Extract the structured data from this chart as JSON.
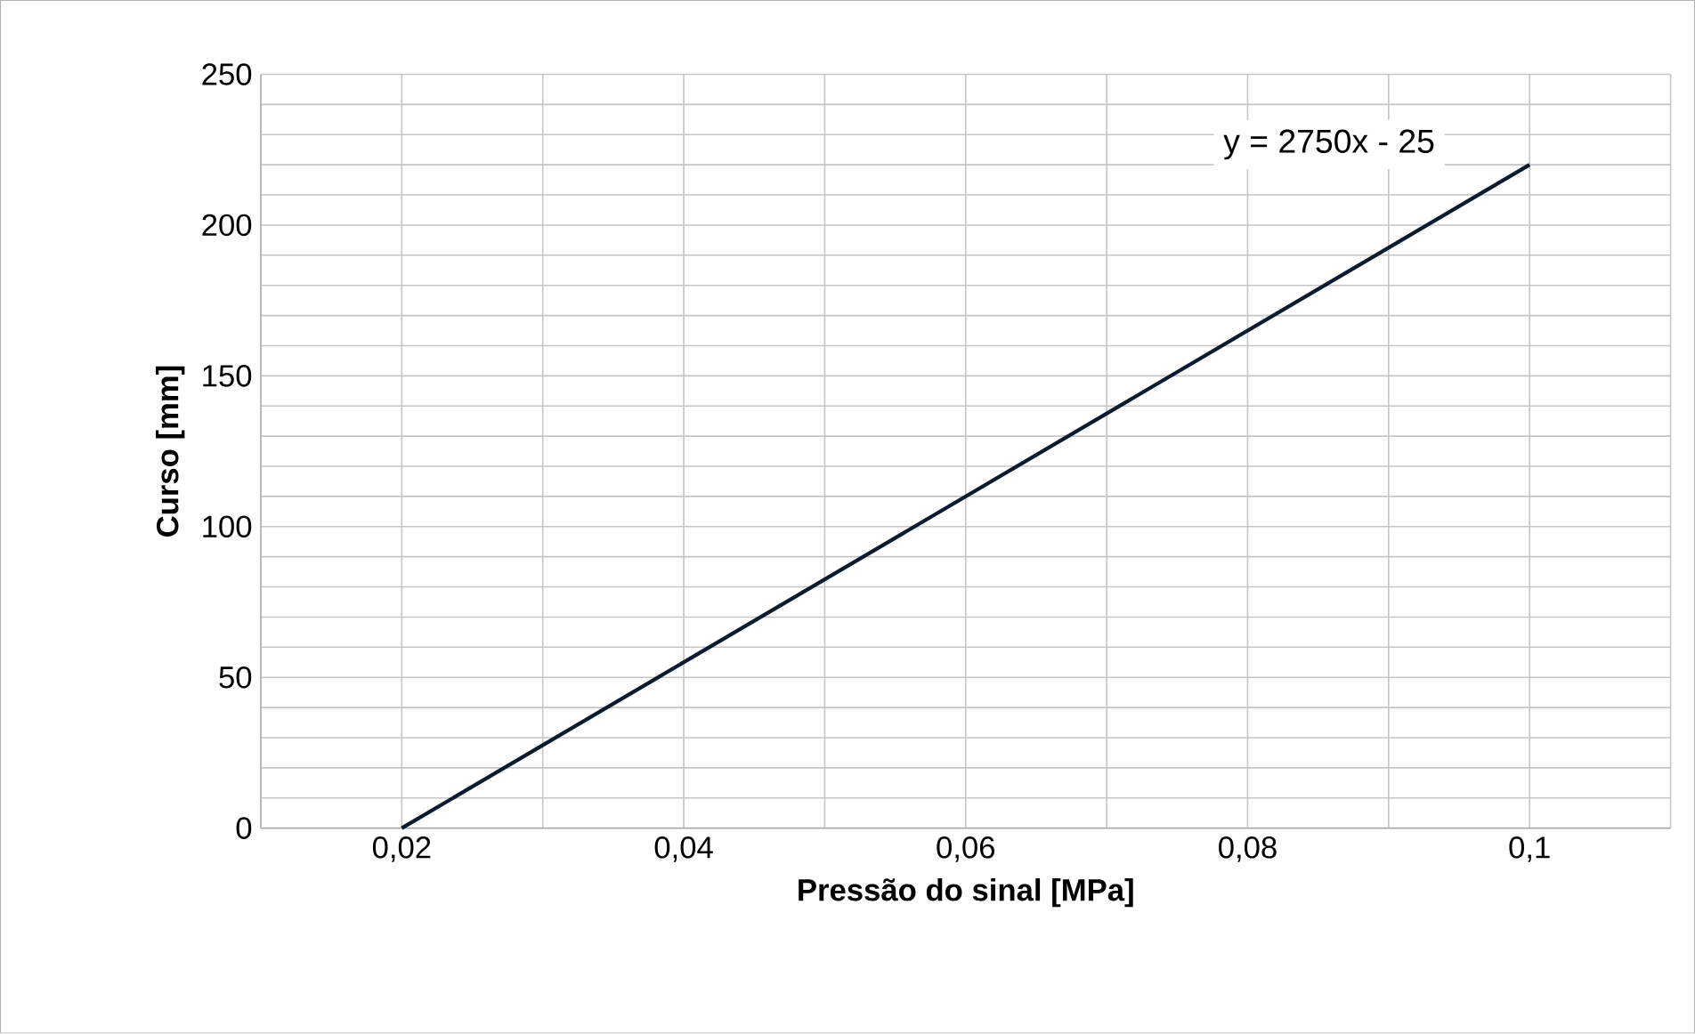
{
  "chart_data": {
    "type": "line",
    "xlabel": "Pressão do sinal [MPa]",
    "ylabel": "Curso [mm]",
    "x": [
      0.02,
      0.1
    ],
    "series": [
      {
        "color": "#0d1b2e",
        "values": [
          0,
          220
        ]
      }
    ],
    "xlim": [
      0.01,
      0.11
    ],
    "xticks": [
      {
        "value": 0.01,
        "label": null
      },
      {
        "value": 0.02,
        "label": "0,02"
      },
      {
        "value": 0.03,
        "label": null
      },
      {
        "value": 0.04,
        "label": "0,04"
      },
      {
        "value": 0.05,
        "label": null
      },
      {
        "value": 0.06,
        "label": "0,06"
      },
      {
        "value": 0.07,
        "label": null
      },
      {
        "value": 0.08,
        "label": "0,08"
      },
      {
        "value": 0.09,
        "label": null
      },
      {
        "value": 0.1,
        "label": "0,1"
      },
      {
        "value": 0.11,
        "label": null
      }
    ],
    "ylim": [
      0,
      250
    ],
    "yticks": [
      0,
      {
        "value": 10,
        "label": null
      },
      {
        "value": 20,
        "label": null
      },
      {
        "value": 30,
        "label": null
      },
      {
        "value": 40,
        "label": null
      },
      50,
      {
        "value": 60,
        "label": null
      },
      {
        "value": 70,
        "label": null
      },
      {
        "value": 80,
        "label": null
      },
      {
        "value": 90,
        "label": null
      },
      100,
      {
        "value": 110,
        "label": null
      },
      {
        "value": 120,
        "label": null
      },
      {
        "value": 130,
        "label": null
      },
      {
        "value": 140,
        "label": null
      },
      150,
      {
        "value": 160,
        "label": null
      },
      {
        "value": 170,
        "label": null
      },
      {
        "value": 180,
        "label": null
      },
      {
        "value": 190,
        "label": null
      },
      200,
      {
        "value": 210,
        "label": null
      },
      {
        "value": 220,
        "label": null
      },
      {
        "value": 230,
        "label": null
      },
      {
        "value": 240,
        "label": null
      },
      250
    ],
    "grid": true,
    "marker": "none",
    "line_style": "solid",
    "annotations": [
      "y = 2750x  - 25"
    ]
  }
}
